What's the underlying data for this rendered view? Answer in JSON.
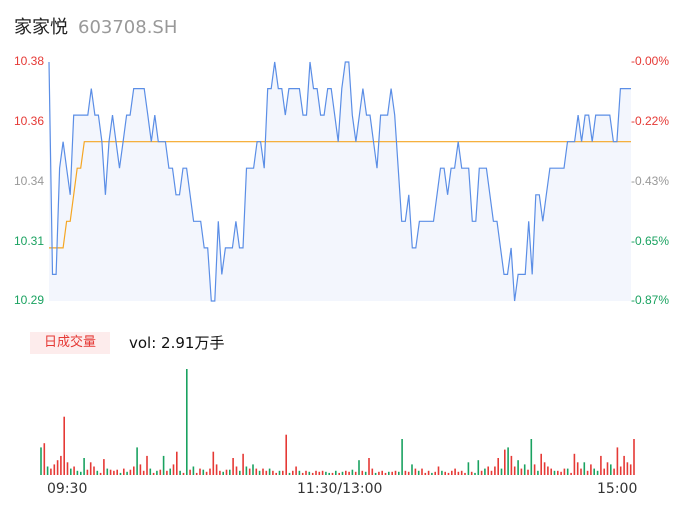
{
  "header": {
    "name": "家家悦",
    "code": "603708.SH"
  },
  "price_axis": {
    "left_ticks": [
      {
        "label": "10.38",
        "color": "#e53935"
      },
      {
        "label": "10.36",
        "color": "#e53935"
      },
      {
        "label": "10.34",
        "color": "#999999"
      },
      {
        "label": "10.31",
        "color": "#1aa260"
      },
      {
        "label": "10.29",
        "color": "#1aa260"
      }
    ],
    "right_ticks": [
      {
        "label": "-0.00%",
        "color": "#e53935"
      },
      {
        "label": "-0.22%",
        "color": "#e53935"
      },
      {
        "label": "-0.43%",
        "color": "#999999"
      },
      {
        "label": "-0.65%",
        "color": "#1aa260"
      },
      {
        "label": "-0.87%",
        "color": "#1aa260"
      }
    ]
  },
  "volume": {
    "tag": "日成交量",
    "summary": "vol: 2.91万手"
  },
  "x_axis": {
    "labels": [
      "09:30",
      "11:30/13:00",
      "15:00"
    ]
  },
  "colors": {
    "price_line": "#5b8ee6",
    "avg_line": "#f5a623",
    "up": "#e53935",
    "down": "#1aa260",
    "area": "#f3f6fd"
  },
  "chart_data": {
    "type": "line",
    "ylim": [
      10.29,
      10.38
    ],
    "series": [
      {
        "values": [
          10.38,
          10.3,
          10.3,
          10.34,
          10.35,
          10.34,
          10.33,
          10.36,
          10.36,
          10.36,
          10.36,
          10.36,
          10.37,
          10.36,
          10.36,
          10.35,
          10.33,
          10.35,
          10.36,
          10.35,
          10.34,
          10.35,
          10.36,
          10.36,
          10.37,
          10.37,
          10.37,
          10.37,
          10.36,
          10.35,
          10.36,
          10.35,
          10.35,
          10.35,
          10.34,
          10.34,
          10.33,
          10.33,
          10.34,
          10.34,
          10.33,
          10.32,
          10.32,
          10.32,
          10.31,
          10.31,
          10.29,
          10.29,
          10.32,
          10.3,
          10.31,
          10.31,
          10.31,
          10.32,
          10.31,
          10.31,
          10.34,
          10.34,
          10.34,
          10.35,
          10.35,
          10.34,
          10.37,
          10.37,
          10.38,
          10.37,
          10.37,
          10.36,
          10.37,
          10.37,
          10.37,
          10.37,
          10.36,
          10.36,
          10.38,
          10.37,
          10.37,
          10.36,
          10.36,
          10.37,
          10.37,
          10.36,
          10.35,
          10.37,
          10.38,
          10.38,
          10.36,
          10.35,
          10.36,
          10.37,
          10.36,
          10.36,
          10.35,
          10.34,
          10.36,
          10.36,
          10.36,
          10.37,
          10.36,
          10.34,
          10.32,
          10.32,
          10.33,
          10.31,
          10.31,
          10.32,
          10.32,
          10.32,
          10.32,
          10.32,
          10.33,
          10.34,
          10.34,
          10.33,
          10.34,
          10.34,
          10.35,
          10.34,
          10.34,
          10.34,
          10.32,
          10.32,
          10.34,
          10.34,
          10.34,
          10.33,
          10.32,
          10.32,
          10.31,
          10.3,
          10.3,
          10.31,
          10.29,
          10.3,
          10.3,
          10.3,
          10.32,
          10.3,
          10.33,
          10.33,
          10.32,
          10.33,
          10.34,
          10.34,
          10.34,
          10.34,
          10.34,
          10.35,
          10.35,
          10.35,
          10.36,
          10.35,
          10.36,
          10.36,
          10.35,
          10.36,
          10.36,
          10.36,
          10.36,
          10.36,
          10.35,
          10.35,
          10.37,
          10.37,
          10.37,
          10.37
        ]
      },
      {
        "values": [
          10.31,
          10.31,
          10.31,
          10.31,
          10.31,
          10.32,
          10.32,
          10.33,
          10.34,
          10.34,
          10.35,
          10.35,
          10.35,
          10.35,
          10.35,
          10.35,
          10.35,
          10.35,
          10.35,
          10.35,
          10.35,
          10.35,
          10.35,
          10.35,
          10.35,
          10.35,
          10.35,
          10.35,
          10.35,
          10.35,
          10.35,
          10.35,
          10.35,
          10.35,
          10.35,
          10.35,
          10.35,
          10.35,
          10.35,
          10.35,
          10.35,
          10.35,
          10.35,
          10.35,
          10.35,
          10.35,
          10.35,
          10.35,
          10.35,
          10.35,
          10.35,
          10.35,
          10.35,
          10.35,
          10.35,
          10.35,
          10.35,
          10.35,
          10.35,
          10.35,
          10.35,
          10.35,
          10.35,
          10.35,
          10.35,
          10.35,
          10.35,
          10.35,
          10.35,
          10.35,
          10.35,
          10.35,
          10.35,
          10.35,
          10.35,
          10.35,
          10.35,
          10.35,
          10.35,
          10.35,
          10.35,
          10.35,
          10.35,
          10.35,
          10.35,
          10.35,
          10.35,
          10.35,
          10.35,
          10.35,
          10.35,
          10.35,
          10.35,
          10.35,
          10.35,
          10.35,
          10.35,
          10.35,
          10.35,
          10.35,
          10.35,
          10.35,
          10.35,
          10.35,
          10.35,
          10.35,
          10.35,
          10.35,
          10.35,
          10.35,
          10.35,
          10.35,
          10.35,
          10.35,
          10.35,
          10.35,
          10.35,
          10.35,
          10.35,
          10.35,
          10.35,
          10.35,
          10.35,
          10.35,
          10.35,
          10.35,
          10.35,
          10.35,
          10.35,
          10.35,
          10.35,
          10.35,
          10.35,
          10.35,
          10.35,
          10.35,
          10.35,
          10.35,
          10.35,
          10.35,
          10.35,
          10.35,
          10.35,
          10.35,
          10.35,
          10.35,
          10.35,
          10.35,
          10.35,
          10.35,
          10.35,
          10.35,
          10.35,
          10.35,
          10.35,
          10.35,
          10.35,
          10.35,
          10.35,
          10.35,
          10.35,
          10.35,
          10.35,
          10.35,
          10.35,
          10.35
        ]
      }
    ],
    "volume_bars": [
      {
        "v": 0.26,
        "c": "down"
      },
      {
        "v": 0.3,
        "c": "up"
      },
      {
        "v": 0.08,
        "c": "down"
      },
      {
        "v": 0.06,
        "c": "up"
      },
      {
        "v": 0.1,
        "c": "up"
      },
      {
        "v": 0.14,
        "c": "up"
      },
      {
        "v": 0.18,
        "c": "up"
      },
      {
        "v": 0.55,
        "c": "up"
      },
      {
        "v": 0.12,
        "c": "up"
      },
      {
        "v": 0.06,
        "c": "down"
      },
      {
        "v": 0.08,
        "c": "up"
      },
      {
        "v": 0.04,
        "c": "down"
      },
      {
        "v": 0.03,
        "c": "down"
      },
      {
        "v": 0.16,
        "c": "down"
      },
      {
        "v": 0.05,
        "c": "up"
      },
      {
        "v": 0.12,
        "c": "up"
      },
      {
        "v": 0.08,
        "c": "up"
      },
      {
        "v": 0.04,
        "c": "down"
      },
      {
        "v": 0.02,
        "c": "up"
      },
      {
        "v": 0.15,
        "c": "up"
      },
      {
        "v": 0.06,
        "c": "down"
      },
      {
        "v": 0.05,
        "c": "up"
      },
      {
        "v": 0.04,
        "c": "up"
      },
      {
        "v": 0.05,
        "c": "up"
      },
      {
        "v": 0.02,
        "c": "down"
      },
      {
        "v": 0.06,
        "c": "up"
      },
      {
        "v": 0.03,
        "c": "down"
      },
      {
        "v": 0.05,
        "c": "up"
      },
      {
        "v": 0.08,
        "c": "up"
      },
      {
        "v": 0.26,
        "c": "down"
      },
      {
        "v": 0.1,
        "c": "up"
      },
      {
        "v": 0.04,
        "c": "up"
      },
      {
        "v": 0.18,
        "c": "up"
      },
      {
        "v": 0.06,
        "c": "down"
      },
      {
        "v": 0.02,
        "c": "up"
      },
      {
        "v": 0.04,
        "c": "down"
      },
      {
        "v": 0.05,
        "c": "up"
      },
      {
        "v": 0.18,
        "c": "down"
      },
      {
        "v": 0.04,
        "c": "up"
      },
      {
        "v": 0.06,
        "c": "down"
      },
      {
        "v": 0.1,
        "c": "up"
      },
      {
        "v": 0.22,
        "c": "up"
      },
      {
        "v": 0.04,
        "c": "down"
      },
      {
        "v": 0.02,
        "c": "up"
      },
      {
        "v": 1.0,
        "c": "down"
      },
      {
        "v": 0.05,
        "c": "up"
      },
      {
        "v": 0.08,
        "c": "down"
      },
      {
        "v": 0.02,
        "c": "up"
      },
      {
        "v": 0.06,
        "c": "up"
      },
      {
        "v": 0.05,
        "c": "down"
      },
      {
        "v": 0.03,
        "c": "up"
      },
      {
        "v": 0.06,
        "c": "up"
      },
      {
        "v": 0.22,
        "c": "up"
      },
      {
        "v": 0.1,
        "c": "up"
      },
      {
        "v": 0.04,
        "c": "up"
      },
      {
        "v": 0.03,
        "c": "down"
      },
      {
        "v": 0.05,
        "c": "up"
      },
      {
        "v": 0.05,
        "c": "down"
      },
      {
        "v": 0.16,
        "c": "up"
      },
      {
        "v": 0.08,
        "c": "up"
      },
      {
        "v": 0.04,
        "c": "down"
      },
      {
        "v": 0.2,
        "c": "up"
      },
      {
        "v": 0.08,
        "c": "down"
      },
      {
        "v": 0.06,
        "c": "up"
      },
      {
        "v": 0.1,
        "c": "down"
      },
      {
        "v": 0.06,
        "c": "up"
      },
      {
        "v": 0.04,
        "c": "down"
      },
      {
        "v": 0.06,
        "c": "up"
      },
      {
        "v": 0.04,
        "c": "up"
      },
      {
        "v": 0.06,
        "c": "down"
      },
      {
        "v": 0.04,
        "c": "up"
      },
      {
        "v": 0.02,
        "c": "up"
      },
      {
        "v": 0.04,
        "c": "down"
      },
      {
        "v": 0.04,
        "c": "up"
      },
      {
        "v": 0.38,
        "c": "up"
      },
      {
        "v": 0.02,
        "c": "down"
      },
      {
        "v": 0.04,
        "c": "up"
      },
      {
        "v": 0.08,
        "c": "up"
      },
      {
        "v": 0.04,
        "c": "down"
      },
      {
        "v": 0.02,
        "c": "up"
      },
      {
        "v": 0.04,
        "c": "up"
      },
      {
        "v": 0.03,
        "c": "down"
      },
      {
        "v": 0.02,
        "c": "up"
      },
      {
        "v": 0.04,
        "c": "up"
      },
      {
        "v": 0.03,
        "c": "up"
      },
      {
        "v": 0.04,
        "c": "up"
      },
      {
        "v": 0.03,
        "c": "down"
      },
      {
        "v": 0.02,
        "c": "down"
      },
      {
        "v": 0.02,
        "c": "up"
      },
      {
        "v": 0.04,
        "c": "down"
      },
      {
        "v": 0.02,
        "c": "up"
      },
      {
        "v": 0.03,
        "c": "down"
      },
      {
        "v": 0.04,
        "c": "up"
      },
      {
        "v": 0.03,
        "c": "up"
      },
      {
        "v": 0.05,
        "c": "down"
      },
      {
        "v": 0.03,
        "c": "up"
      },
      {
        "v": 0.14,
        "c": "down"
      },
      {
        "v": 0.04,
        "c": "up"
      },
      {
        "v": 0.03,
        "c": "down"
      },
      {
        "v": 0.16,
        "c": "up"
      },
      {
        "v": 0.06,
        "c": "up"
      },
      {
        "v": 0.02,
        "c": "down"
      },
      {
        "v": 0.03,
        "c": "up"
      },
      {
        "v": 0.04,
        "c": "up"
      },
      {
        "v": 0.02,
        "c": "up"
      },
      {
        "v": 0.03,
        "c": "down"
      },
      {
        "v": 0.03,
        "c": "up"
      },
      {
        "v": 0.04,
        "c": "up"
      },
      {
        "v": 0.03,
        "c": "down"
      },
      {
        "v": 0.34,
        "c": "down"
      },
      {
        "v": 0.04,
        "c": "up"
      },
      {
        "v": 0.03,
        "c": "up"
      },
      {
        "v": 0.1,
        "c": "down"
      },
      {
        "v": 0.06,
        "c": "up"
      },
      {
        "v": 0.04,
        "c": "down"
      },
      {
        "v": 0.06,
        "c": "up"
      },
      {
        "v": 0.02,
        "c": "up"
      },
      {
        "v": 0.04,
        "c": "up"
      },
      {
        "v": 0.02,
        "c": "down"
      },
      {
        "v": 0.03,
        "c": "up"
      },
      {
        "v": 0.08,
        "c": "up"
      },
      {
        "v": 0.04,
        "c": "down"
      },
      {
        "v": 0.03,
        "c": "up"
      },
      {
        "v": 0.02,
        "c": "up"
      },
      {
        "v": 0.04,
        "c": "up"
      },
      {
        "v": 0.06,
        "c": "up"
      },
      {
        "v": 0.03,
        "c": "up"
      },
      {
        "v": 0.04,
        "c": "up"
      },
      {
        "v": 0.02,
        "c": "up"
      },
      {
        "v": 0.12,
        "c": "down"
      },
      {
        "v": 0.03,
        "c": "up"
      },
      {
        "v": 0.02,
        "c": "down"
      },
      {
        "v": 0.14,
        "c": "down"
      },
      {
        "v": 0.04,
        "c": "up"
      },
      {
        "v": 0.06,
        "c": "down"
      },
      {
        "v": 0.08,
        "c": "up"
      },
      {
        "v": 0.04,
        "c": "up"
      },
      {
        "v": 0.08,
        "c": "up"
      },
      {
        "v": 0.16,
        "c": "up"
      },
      {
        "v": 0.06,
        "c": "down"
      },
      {
        "v": 0.24,
        "c": "up"
      },
      {
        "v": 0.26,
        "c": "down"
      },
      {
        "v": 0.18,
        "c": "up"
      },
      {
        "v": 0.08,
        "c": "up"
      },
      {
        "v": 0.14,
        "c": "down"
      },
      {
        "v": 0.06,
        "c": "up"
      },
      {
        "v": 0.1,
        "c": "down"
      },
      {
        "v": 0.05,
        "c": "up"
      },
      {
        "v": 0.34,
        "c": "down"
      },
      {
        "v": 0.1,
        "c": "up"
      },
      {
        "v": 0.04,
        "c": "down"
      },
      {
        "v": 0.2,
        "c": "up"
      },
      {
        "v": 0.12,
        "c": "up"
      },
      {
        "v": 0.08,
        "c": "up"
      },
      {
        "v": 0.06,
        "c": "up"
      },
      {
        "v": 0.04,
        "c": "down"
      },
      {
        "v": 0.04,
        "c": "up"
      },
      {
        "v": 0.03,
        "c": "up"
      },
      {
        "v": 0.06,
        "c": "up"
      },
      {
        "v": 0.06,
        "c": "down"
      },
      {
        "v": 0.02,
        "c": "up"
      },
      {
        "v": 0.2,
        "c": "up"
      },
      {
        "v": 0.12,
        "c": "up"
      },
      {
        "v": 0.06,
        "c": "up"
      },
      {
        "v": 0.12,
        "c": "down"
      },
      {
        "v": 0.04,
        "c": "up"
      },
      {
        "v": 0.1,
        "c": "up"
      },
      {
        "v": 0.06,
        "c": "down"
      },
      {
        "v": 0.04,
        "c": "down"
      },
      {
        "v": 0.18,
        "c": "up"
      },
      {
        "v": 0.06,
        "c": "up"
      },
      {
        "v": 0.12,
        "c": "up"
      },
      {
        "v": 0.1,
        "c": "down"
      },
      {
        "v": 0.06,
        "c": "up"
      },
      {
        "v": 0.26,
        "c": "up"
      },
      {
        "v": 0.08,
        "c": "up"
      },
      {
        "v": 0.18,
        "c": "up"
      },
      {
        "v": 0.12,
        "c": "up"
      },
      {
        "v": 0.1,
        "c": "up"
      },
      {
        "v": 0.34,
        "c": "up"
      }
    ]
  }
}
